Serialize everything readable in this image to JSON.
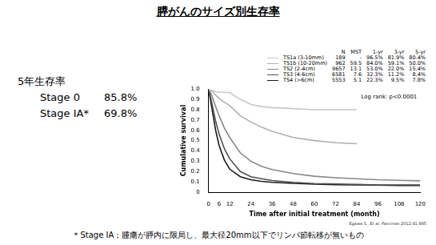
{
  "title": "膵がんのサイズ別生存率",
  "side_text": {
    "heading": "5年生存率",
    "rows": [
      [
        "Stage 0",
        "85.8%"
      ],
      [
        "Stage IA*",
        "69.8%"
      ]
    ]
  },
  "footnote": "＊Stage IA；腫瘍が膵内に限局し、最大径20mm以下でリンパ節転移が無いもの",
  "chart_data": {
    "type": "line",
    "x_label": "Time after initial treatment (month)",
    "y_label": "Cumulative survival",
    "annotation": "Log rank: p<0.0001",
    "source": "Egawa S., Et al. Pancreas 2012;41:985",
    "legend": "upper right",
    "grid": false,
    "marker": "none",
    "legend_columns": [
      "N",
      "MST",
      "1-yr",
      "3-yr",
      "5-yr"
    ],
    "xlim": [
      0,
      120
    ],
    "xticks": [
      0,
      6,
      12,
      24,
      36,
      48,
      60,
      72,
      84,
      96,
      108,
      120
    ],
    "ylim": [
      0,
      1
    ],
    "yticks": [
      0,
      0.1,
      0.2,
      0.3,
      0.4,
      0.5,
      0.6,
      0.7,
      0.8,
      0.9,
      {
        "value": 1,
        "label": "1.0"
      }
    ],
    "x": [
      0,
      1,
      2,
      3,
      4,
      6,
      9,
      12,
      18,
      24,
      30,
      36,
      48,
      60,
      72,
      84,
      96,
      108,
      120
    ],
    "series": [
      {
        "name": "TS1a (3-10mm)",
        "color": "#c8c8c8",
        "stats": [
          "189",
          "-",
          "96.5%",
          "81.9%",
          "80.4%"
        ],
        "values": [
          1,
          0.99,
          0.985,
          0.98,
          0.975,
          0.97,
          0.968,
          0.965,
          0.9,
          0.85,
          0.83,
          0.82,
          0.81,
          0.8,
          0.8,
          0.8,
          null,
          null,
          null
        ]
      },
      {
        "name": "TS1b (10-20mm)",
        "color": "#b0b0b0",
        "stats": [
          "962",
          "59.5",
          "84.0%",
          "59.1%",
          "50.0%"
        ],
        "values": [
          1,
          0.99,
          0.98,
          0.96,
          0.94,
          0.91,
          0.87,
          0.84,
          0.74,
          0.68,
          0.63,
          0.59,
          0.53,
          0.5,
          0.48,
          0.47,
          null,
          null,
          null
        ]
      },
      {
        "name": "TS2 (2-4cm)",
        "color": "#888888",
        "stats": [
          "9657",
          "13.1",
          "53.0%",
          "22.0%",
          "15.4%"
        ],
        "values": [
          1,
          0.97,
          0.93,
          0.88,
          0.83,
          0.74,
          0.62,
          0.53,
          0.38,
          0.3,
          0.25,
          0.22,
          0.18,
          0.154,
          0.14,
          0.13,
          0.12,
          0.115,
          0.11
        ]
      },
      {
        "name": "TS3 (4-6cm)",
        "color": "#505050",
        "stats": [
          "6581",
          "7.6",
          "32.3%",
          "11.2%",
          "8.4%"
        ],
        "values": [
          1,
          0.93,
          0.85,
          0.77,
          0.69,
          0.56,
          0.42,
          0.323,
          0.2,
          0.15,
          0.13,
          0.112,
          0.095,
          0.084,
          0.08,
          0.075,
          0.07,
          0.07,
          0.07
        ]
      },
      {
        "name": "TS4 (>6cm)",
        "color": "#1a1a1a",
        "stats": [
          "5553",
          "5.1",
          "22.3%",
          "9.5%",
          "7.8%"
        ],
        "values": [
          1,
          0.9,
          0.8,
          0.7,
          0.6,
          0.45,
          0.31,
          0.223,
          0.15,
          0.12,
          0.105,
          0.095,
          0.085,
          0.078,
          0.073,
          0.07,
          0.068,
          0.065,
          0.065
        ]
      }
    ]
  }
}
